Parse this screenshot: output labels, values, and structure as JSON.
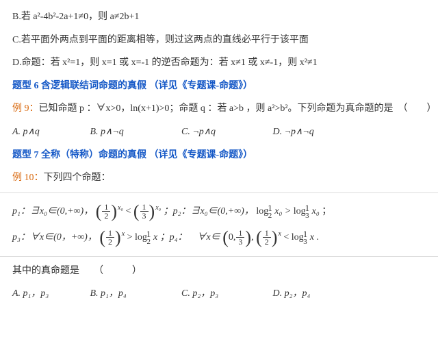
{
  "colors": {
    "text": "#333333",
    "heading": "#1659c7",
    "example": "#d8660a",
    "border": "#dcdcdc",
    "bg": "#ffffff"
  },
  "optB": {
    "label": "B.",
    "text": "若 a²-4b²-2a+1≠0，则 a≠2b+1"
  },
  "optC": {
    "label": "C.",
    "text": "若平面外两点到平面的距离相等，则过这两点的直线必平行于该平面"
  },
  "optD": {
    "label": "D.",
    "text": "命题：若 x²=1，则 x=1 或 x=-1 的逆否命题为：若 x≠1 或 x≠-1，则 x²≠1"
  },
  "heading6": "题型 6  含逻辑联结词命题的真假  （详见《专题课-命题》）",
  "ex9": {
    "label": "例 9：",
    "text": "已知命题 p ：∀x>0，ln(x+1)>0；命题 q ：若 a>b ，则 a²>b²。下列命题为真命题的是　（　　）"
  },
  "ex9opts": {
    "a": "A. p∧q",
    "b": "B. p∧¬q",
    "c": "C. ¬p∧q",
    "d": "D. ¬p∧¬q"
  },
  "heading7": "题型 7  全称（特称）命题的真假  （详见《专题课-命题》）",
  "ex10": {
    "label": "例 10：",
    "text": "下列四个命题："
  },
  "p1": {
    "lead": "p₁：∃x₀∈(0,+∞)，",
    "mid": "；p₂：∃x₀∈(0,+∞)，",
    "tail": "；",
    "half_exp": "x₀",
    "third_exp": "x₀",
    "log_half": "log",
    "log_half_arg": " x₀ > ",
    "log_third": "log",
    "log_third_arg": " x₀"
  },
  "p3": {
    "lead": "p₃：∀x∈(0，+∞)，",
    "mid": "；p₄：　∀x∈",
    "tail": " .",
    "exp_x": "x",
    "gt": " > ",
    "lt": " < ",
    "log": "log",
    "arg": " x"
  },
  "answer_line": "其中的真命题是　　（　　　）",
  "final_opts": {
    "a": "A. p₁，p₃",
    "b": "B. p₁，p₄",
    "c": "C. p₂，p₃",
    "d": "D. p₂，p₄"
  }
}
